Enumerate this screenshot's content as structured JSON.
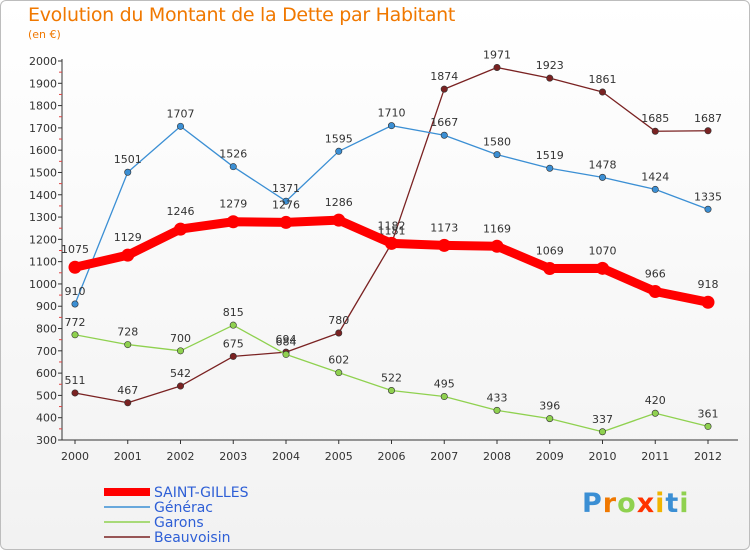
{
  "header": {
    "title": "Evolution du Montant de la Dette par Habitant",
    "unit": "(en €)"
  },
  "logo": {
    "text": "Proxiti"
  },
  "chart_data": {
    "type": "line",
    "title": "Evolution du Montant de la Dette par Habitant",
    "subtitle": "(en €)",
    "categories": [
      "2000",
      "2001",
      "2002",
      "2003",
      "2004",
      "2005",
      "2006",
      "2007",
      "2008",
      "2009",
      "2010",
      "2011",
      "2012"
    ],
    "ylim": [
      300,
      2000
    ],
    "yticks": [
      300,
      400,
      500,
      600,
      700,
      800,
      900,
      1000,
      1100,
      1200,
      1300,
      1400,
      1500,
      1600,
      1700,
      1800,
      1900,
      2000
    ],
    "grid": false,
    "legend_position": "bottom-left",
    "series": [
      {
        "name": "SAINT-GILLES",
        "color": "#ff0000",
        "values": [
          1075,
          1129,
          1246,
          1279,
          1276,
          1286,
          1182,
          1173,
          1169,
          1069,
          1070,
          966,
          918
        ]
      },
      {
        "name": "Générac",
        "color": "#3b8fd4",
        "values": [
          910,
          1501,
          1707,
          1526,
          1371,
          1595,
          1710,
          1667,
          1580,
          1519,
          1478,
          1424,
          1335
        ]
      },
      {
        "name": "Garons",
        "color": "#8fd14f",
        "values": [
          772,
          728,
          700,
          815,
          684,
          602,
          522,
          495,
          433,
          396,
          337,
          420,
          361
        ]
      },
      {
        "name": "Beauvoisin",
        "color": "#7a2222",
        "values": [
          511,
          467,
          542,
          675,
          694,
          780,
          1181,
          1874,
          1971,
          1923,
          1861,
          1685,
          1687
        ]
      }
    ]
  }
}
